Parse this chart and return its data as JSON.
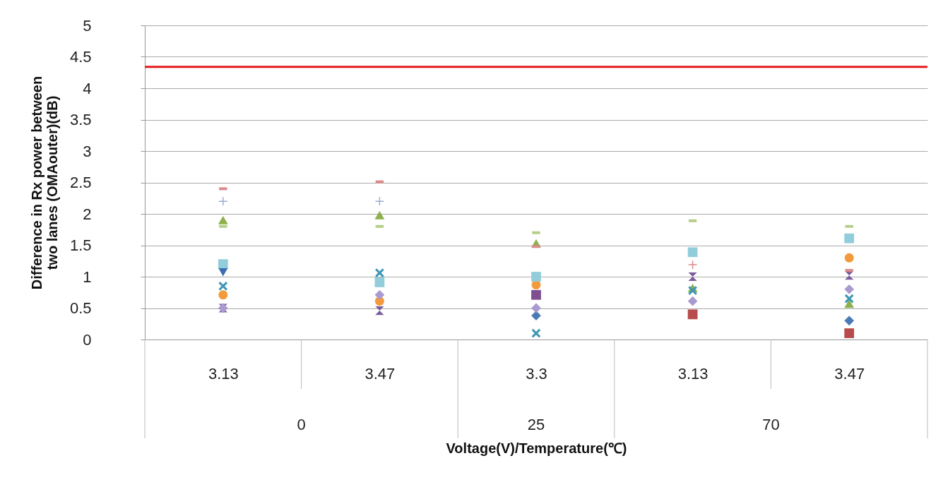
{
  "chart_data": {
    "type": "scatter",
    "xlabel": "Voltage(V)/Temperature(℃)",
    "ylabel": "Difference in Rx power between two lanes (OMAouter)(dB)",
    "categories": [
      "3.13",
      "3.47",
      "3.3",
      "3.13",
      "3.47"
    ],
    "annotations": [
      "0",
      "25",
      "70"
    ],
    "ylim": [
      0,
      5
    ],
    "yticks": [
      {
        "value": 0,
        "label": "0"
      },
      0.5,
      {
        "value": 1,
        "label": "1"
      },
      1.5,
      {
        "value": 2,
        "label": "2"
      },
      2.5,
      {
        "value": 3,
        "label": "3"
      },
      3.5,
      {
        "value": 4,
        "label": "4"
      },
      4.5,
      {
        "value": 5,
        "label": "5"
      }
    ],
    "grid": "y",
    "ref_lines": [
      {
        "axis": "y",
        "value": 4.34,
        "color": "#e41a1c"
      }
    ],
    "series": [
      {
        "marker": "diamond",
        "color": "#4a7ab5",
        "values": [
          null,
          null,
          0.38,
          null,
          0.3
        ]
      },
      {
        "marker": "square",
        "color": "#b84b4b",
        "values": [
          null,
          null,
          null,
          0.4,
          0.1
        ]
      },
      {
        "marker": "triangle",
        "color": "#8eb04d",
        "values": [
          1.9,
          1.98,
          1.53,
          0.82,
          0.57
        ]
      },
      {
        "marker": "x",
        "color": "#3f97b5",
        "values": [
          0.85,
          1.06,
          0.1,
          0.78,
          0.65
        ]
      },
      {
        "marker": "star",
        "color": "#7b5c9e",
        "values": [
          0.5,
          0.46,
          null,
          1.0,
          1.02
        ]
      },
      {
        "marker": "circle",
        "color": "#f39b3c",
        "values": [
          0.71,
          0.61,
          0.87,
          null,
          1.3
        ]
      },
      {
        "marker": "cross",
        "color": "#9aacd0",
        "values": [
          2.2,
          2.2,
          null,
          null,
          null
        ]
      },
      {
        "marker": "cross",
        "color": "#d98a8a",
        "values": [
          null,
          null,
          null,
          1.19,
          null
        ]
      },
      {
        "color": "#d98a8a",
        "values": [
          2.4,
          2.51,
          1.48,
          null,
          1.1
        ]
      },
      {
        "color": "#b5cf88",
        "values": [
          1.8,
          1.8,
          1.7,
          1.89,
          1.8
        ]
      },
      {
        "marker": "square",
        "color": "#92cddc",
        "values": [
          1.2,
          0.91,
          1.0,
          1.39,
          1.61
        ]
      },
      {
        "marker": "triangle-down",
        "color": "#3d6eb4",
        "values": [
          1.07,
          null,
          null,
          null,
          null
        ]
      },
      {
        "marker": "diamond",
        "color": "#a99bd0",
        "values": [
          0.5,
          0.71,
          0.5,
          0.61,
          0.8
        ]
      },
      {
        "marker": "square",
        "color": "#7f4f8f",
        "values": [
          null,
          null,
          0.71,
          null,
          null
        ]
      }
    ]
  }
}
